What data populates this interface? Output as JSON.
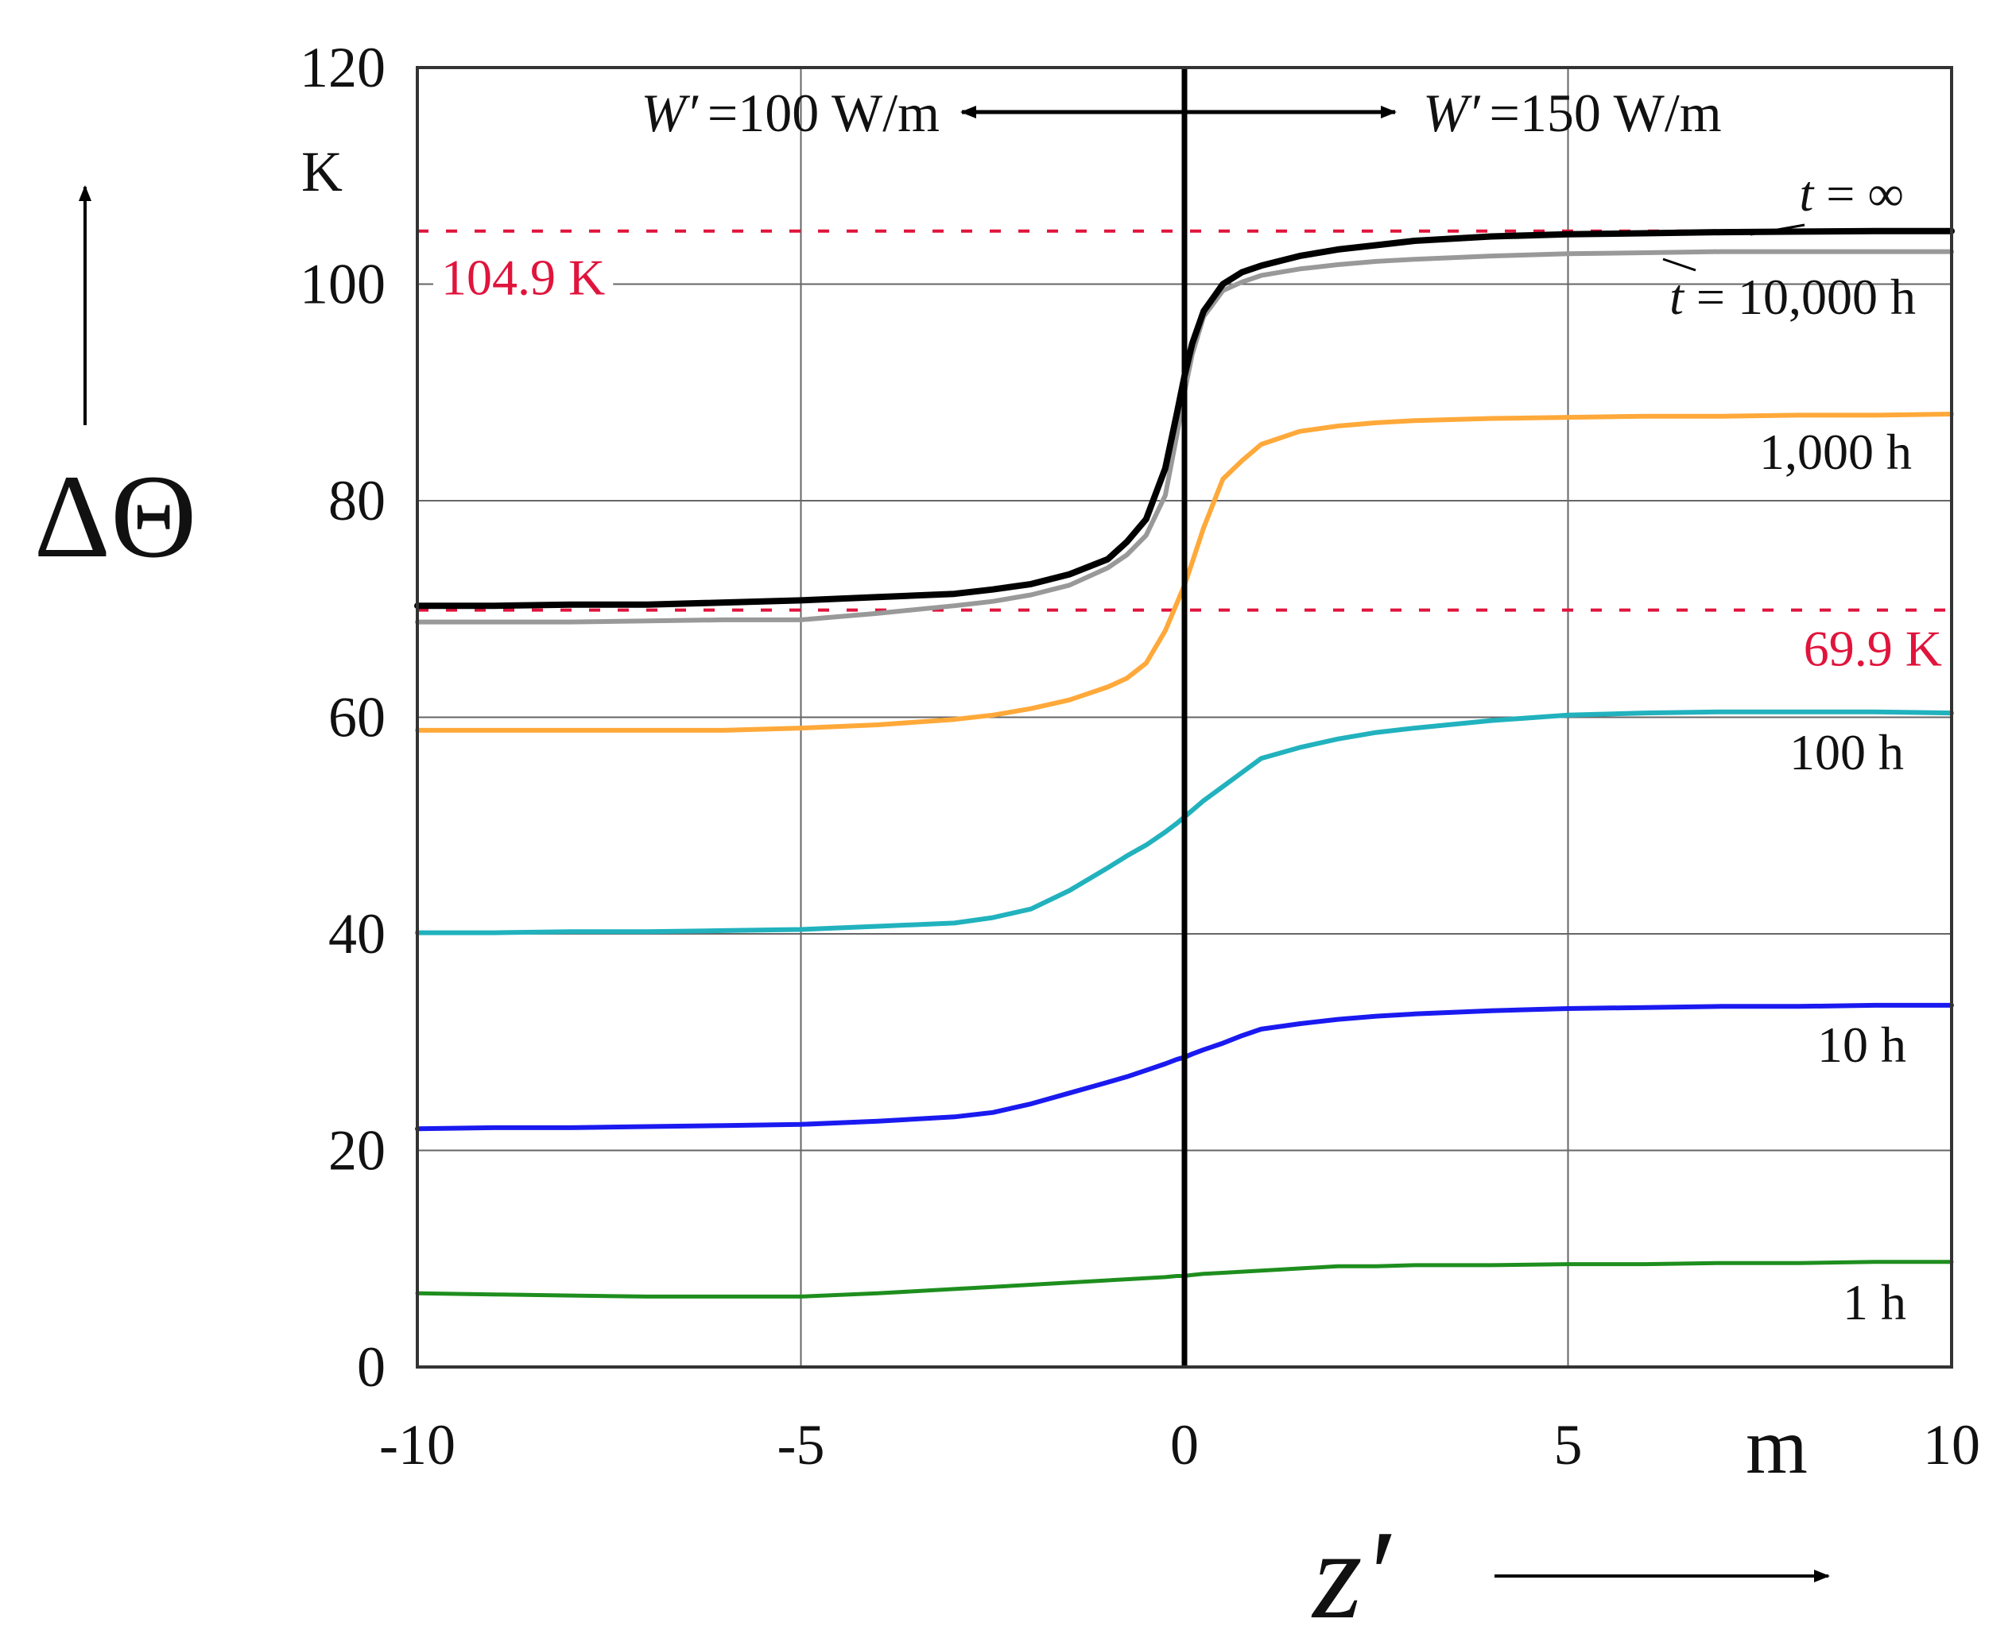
{
  "chart_data": {
    "type": "line",
    "x": [
      -10,
      -9,
      -8,
      -7,
      -6,
      -5,
      -4,
      -3,
      -2.5,
      -2,
      -1.5,
      -1,
      -0.75,
      -0.5,
      -0.25,
      -0.1,
      0,
      0.1,
      0.25,
      0.5,
      0.75,
      1,
      1.5,
      2,
      2.5,
      3,
      4,
      5,
      6,
      7,
      8,
      9,
      10
    ],
    "series": [
      {
        "name": "t = ∞",
        "label": "t = ∞",
        "color": "#000000",
        "width": 8,
        "values": [
          70.3,
          70.3,
          70.4,
          70.4,
          70.6,
          70.8,
          71.1,
          71.4,
          71.8,
          72.3,
          73.2,
          74.6,
          76.2,
          78.3,
          83,
          88,
          91.5,
          94.5,
          97.5,
          100,
          101.1,
          101.7,
          102.6,
          103.2,
          103.6,
          104,
          104.4,
          104.6,
          104.7,
          104.8,
          104.85,
          104.9,
          104.9
        ]
      },
      {
        "name": "10,000 h",
        "label": "t = 10,000 h",
        "color": "#999999",
        "width": 6,
        "values": [
          68.8,
          68.8,
          68.8,
          68.9,
          69,
          69,
          69.6,
          70.3,
          70.7,
          71.3,
          72.2,
          73.8,
          75,
          76.8,
          80.5,
          86,
          90,
          93.5,
          97,
          99.4,
          100.2,
          100.8,
          101.4,
          101.8,
          102.1,
          102.3,
          102.6,
          102.8,
          102.9,
          103,
          103,
          103,
          103
        ]
      },
      {
        "name": "1,000 h",
        "label": "1,000 h",
        "color": "#FFA93A",
        "width": 6,
        "values": [
          58.8,
          58.8,
          58.8,
          58.8,
          58.8,
          59,
          59.3,
          59.8,
          60.2,
          60.8,
          61.6,
          62.8,
          63.6,
          65,
          68,
          70.5,
          72.2,
          74.3,
          77.5,
          82,
          83.7,
          85.2,
          86.4,
          86.9,
          87.2,
          87.4,
          87.6,
          87.7,
          87.8,
          87.8,
          87.9,
          87.9,
          88
        ]
      },
      {
        "name": "100 h",
        "label": "100 h",
        "color": "#21B2BE",
        "width": 6,
        "values": [
          40.1,
          40.1,
          40.2,
          40.2,
          40.3,
          40.4,
          40.7,
          41,
          41.5,
          42.3,
          44,
          46.1,
          47.2,
          48.2,
          49.4,
          50.2,
          50.8,
          51.4,
          52.3,
          53.6,
          54.9,
          56.2,
          57.2,
          58,
          58.6,
          59,
          59.7,
          60.2,
          60.4,
          60.5,
          60.5,
          60.5,
          60.4
        ]
      },
      {
        "name": "10 h",
        "label": "10 h",
        "color": "#1A1AF0",
        "width": 6,
        "values": [
          22,
          22.1,
          22.1,
          22.2,
          22.3,
          22.4,
          22.7,
          23.1,
          23.5,
          24.3,
          25.3,
          26.3,
          26.8,
          27.4,
          28,
          28.4,
          28.6,
          28.9,
          29.3,
          29.9,
          30.6,
          31.2,
          31.7,
          32.1,
          32.4,
          32.6,
          32.9,
          33.1,
          33.2,
          33.3,
          33.3,
          33.4,
          33.4
        ]
      },
      {
        "name": "1 h",
        "label": "1 h",
        "color": "#1E8E1E",
        "width": 5,
        "values": [
          6.8,
          6.7,
          6.6,
          6.5,
          6.5,
          6.5,
          6.8,
          7.2,
          7.4,
          7.6,
          7.8,
          8,
          8.1,
          8.2,
          8.3,
          8.4,
          8.4,
          8.5,
          8.6,
          8.7,
          8.8,
          8.9,
          9.1,
          9.3,
          9.3,
          9.4,
          9.4,
          9.5,
          9.5,
          9.6,
          9.6,
          9.7,
          9.7
        ]
      }
    ],
    "reference_lines": [
      {
        "value": 104.9,
        "label": "104.9 K",
        "color": "#E0143C"
      },
      {
        "value": 69.9,
        "label": "69.9 K",
        "color": "#E0143C"
      }
    ],
    "xlim": [
      -10,
      10
    ],
    "ylim": [
      0,
      120
    ],
    "xticks": [
      -10,
      -5,
      0,
      5,
      10
    ],
    "xtick_labels": [
      "-10",
      "-5",
      "0",
      "5",
      "10"
    ],
    "yticks": [
      0,
      20,
      40,
      60,
      80,
      100,
      120
    ],
    "ytick_labels": [
      "0",
      "20",
      "40",
      "60",
      "80",
      "100",
      "120"
    ],
    "xlabel": "z′",
    "xunit": "m",
    "ylabel": "ΔΘ",
    "yunit": "K",
    "vertical_line_x": 0,
    "left_region": {
      "symbol": "W′",
      "value": "=100 W/m"
    },
    "right_region": {
      "symbol": "W′",
      "value": "=150 W/m"
    },
    "grid": true
  }
}
